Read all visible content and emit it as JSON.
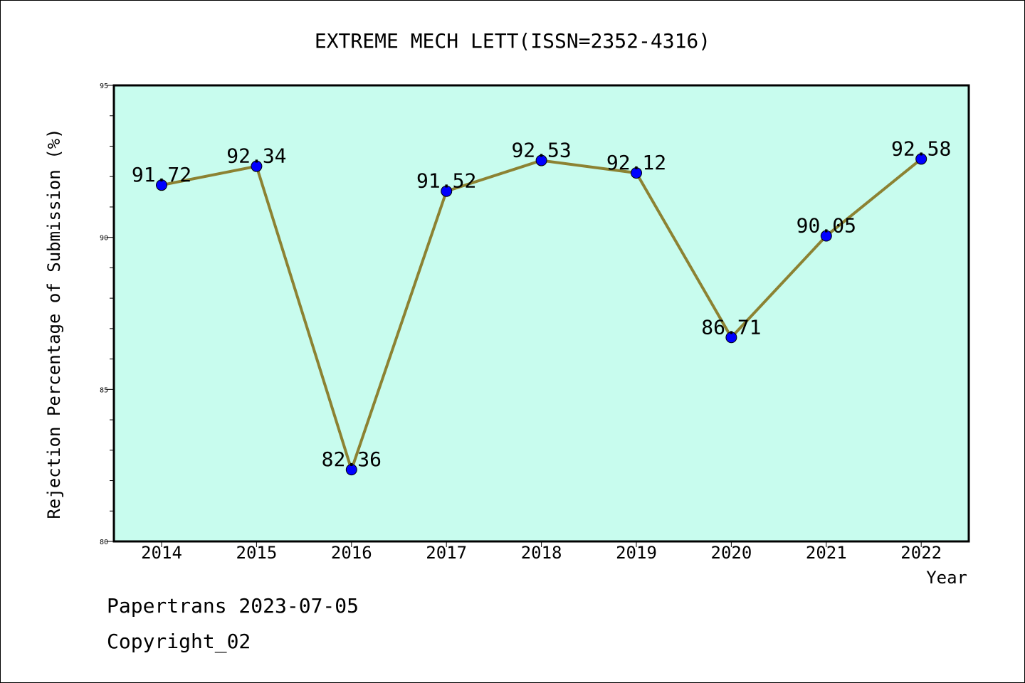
{
  "chart_data": {
    "type": "line",
    "title": "EXTREME MECH LETT(ISSN=2352-4316)",
    "xlabel": "Year",
    "ylabel": "Rejection Percentage of Submission (%)",
    "categories": [
      "2014",
      "2015",
      "2016",
      "2017",
      "2018",
      "2019",
      "2020",
      "2021",
      "2022"
    ],
    "values": [
      91.72,
      92.34,
      82.36,
      91.52,
      92.53,
      92.12,
      86.71,
      90.05,
      92.58
    ],
    "data_labels": [
      "91.72",
      "92.34",
      "82.36",
      "91.52",
      "92.53",
      "92.12",
      "86.71",
      "90.05",
      "92.58"
    ],
    "ylim": [
      80,
      95
    ],
    "yticks": [
      80,
      85,
      90,
      95
    ],
    "ytick_labels": [
      "80",
      "85",
      "90",
      "95"
    ],
    "grid": false,
    "legend": "none",
    "colors": {
      "plot_background": "#c8fcee",
      "line": "#8c8232",
      "marker": "#0000ff",
      "axes": "#000000"
    }
  },
  "footer": {
    "source": "Papertrans 2023-07-05",
    "copyright": "Copyright_02"
  }
}
